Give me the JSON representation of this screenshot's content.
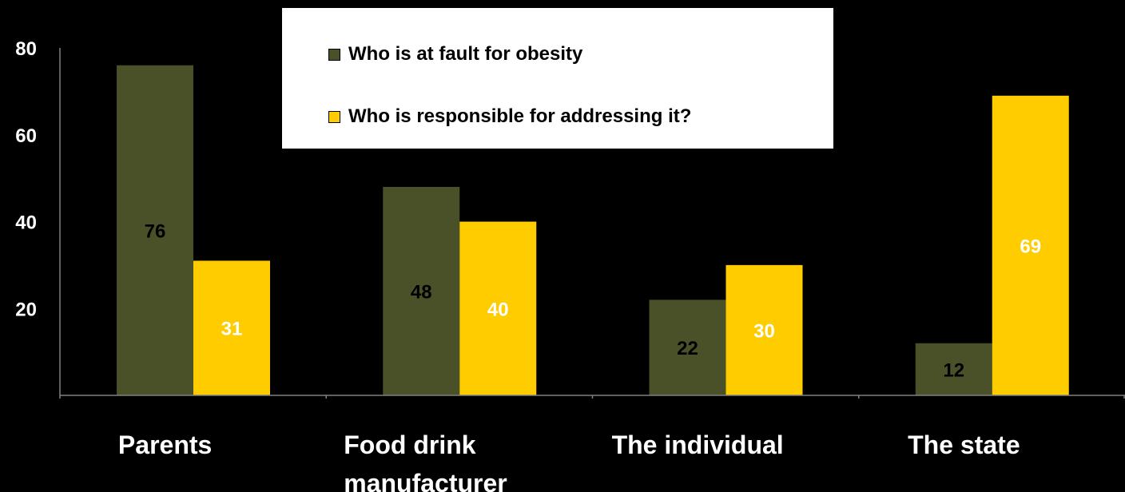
{
  "chart_data": {
    "type": "bar",
    "categories": [
      "Parents",
      "Food  drink manufacturer",
      "The individual",
      "The state"
    ],
    "category_lines": [
      [
        "Parents"
      ],
      [
        "Food  drink",
        "manufacturer"
      ],
      [
        "The individual"
      ],
      [
        "The state"
      ]
    ],
    "series": [
      {
        "name": "Who is at fault for obesity",
        "values": [
          76,
          48,
          22,
          12
        ],
        "color": "#4a5028",
        "label_color": "#000000"
      },
      {
        "name": "Who is responsible for addressing it?",
        "values": [
          31,
          40,
          30,
          69
        ],
        "color": "#ffcc00",
        "label_color": "#ffffff"
      }
    ],
    "ylim": [
      0,
      80
    ],
    "yticks": [
      20,
      40,
      60,
      80
    ],
    "title": "",
    "xlabel": "",
    "ylabel": "",
    "legend_position": "top-center",
    "grid": false,
    "background": "#000000",
    "axis_color": "#808080"
  }
}
